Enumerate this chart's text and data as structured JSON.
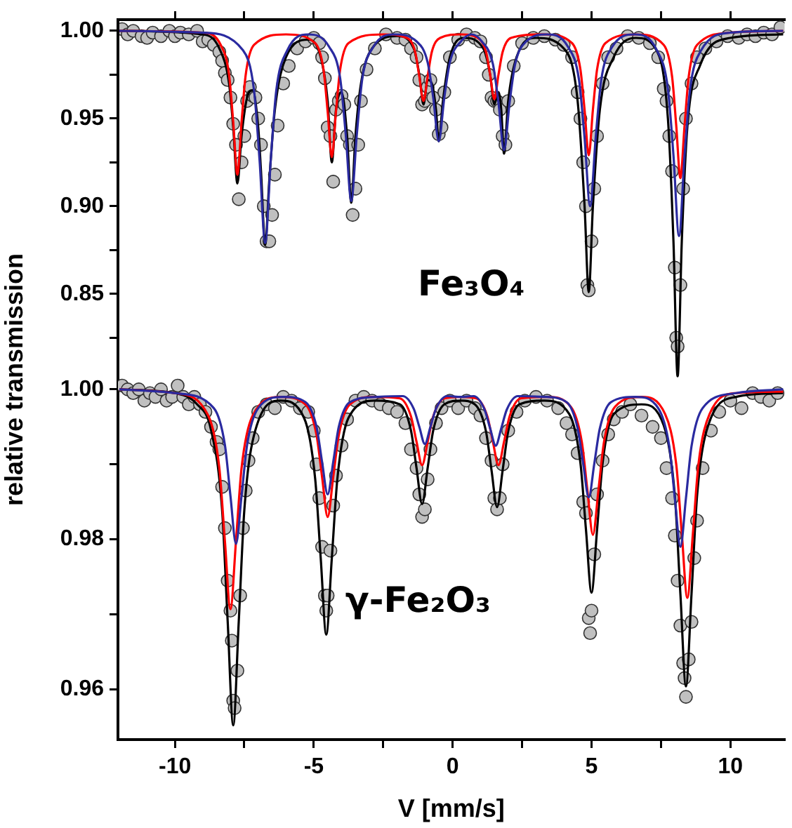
{
  "chart_data": [
    {
      "type": "line",
      "annotations": [
        "Fe₃O₄"
      ],
      "legend": false,
      "tick_labels": "y",
      "xlim": [
        -12.05,
        11.95
      ],
      "ylim": [
        0.5958,
        1.0064
      ],
      "xticks": [
        -10,
        {
          "value": -7.5,
          "label": null
        },
        -5,
        {
          "value": -2.5,
          "label": null
        },
        0,
        {
          "value": 2.5,
          "label": null
        },
        5,
        {
          "value": 7.5,
          "label": null
        },
        10
      ],
      "yticks": [
        {
          "value": 0.825,
          "label": null
        },
        0.85,
        {
          "value": 0.875,
          "label": null
        },
        {
          "value": 0.9,
          "label": "0.90"
        },
        {
          "value": 0.925,
          "label": null
        },
        0.95,
        {
          "value": 0.975,
          "label": null
        },
        {
          "value": 1,
          "label": "1.00"
        }
      ],
      "series": [
        {
          "type": "scatter",
          "marker": "circle",
          "color": "#c0c0c0",
          "x": [
            -11.9,
            -11.7,
            -11.5,
            -11.2,
            -11,
            -10.8,
            -10.5,
            -10.2,
            -10,
            -9.8,
            -9.5,
            -9.2,
            -9,
            -8.8,
            -8.6,
            -8.4,
            -8.3,
            -8.2,
            -8.1,
            -8.0,
            -7.9,
            -7.8,
            -7.7,
            -7.6,
            -7.5,
            -7.4,
            -7.3,
            -7.2,
            -7.1,
            -7.0,
            -6.9,
            -6.8,
            -6.7,
            -6.6,
            -6.5,
            -6.4,
            -6.3,
            -6.1,
            -5.9,
            -5.6,
            -5.3,
            -5.0,
            -4.8,
            -4.7,
            -4.6,
            -4.5,
            -4.4,
            -4.3,
            -4.2,
            -4.1,
            -4.0,
            -3.9,
            -3.8,
            -3.7,
            -3.6,
            -3.5,
            -3.4,
            -3.3,
            -3.1,
            -2.8,
            -2.4,
            -2.0,
            -1.7,
            -1.5,
            -1.3,
            -1.2,
            -1.1,
            -1.0,
            -0.9,
            -0.8,
            -0.7,
            -0.6,
            -0.5,
            -0.4,
            -0.3,
            -0.1,
            0.2,
            0.5,
            0.8,
            1.0,
            1.2,
            1.3,
            1.4,
            1.5,
            1.6,
            1.7,
            1.8,
            1.9,
            2.0,
            2.2,
            2.5,
            2.9,
            3.3,
            3.7,
            4.0,
            4.3,
            4.5,
            4.6,
            4.7,
            4.8,
            4.85,
            4.9,
            5.0,
            5.1,
            5.2,
            5.4,
            5.6,
            5.9,
            6.3,
            6.7,
            7.1,
            7.4,
            7.6,
            7.7,
            7.8,
            7.9,
            8.0,
            8.05,
            8.1,
            8.2,
            8.3,
            8.4,
            8.6,
            8.8,
            9.1,
            9.5,
            9.9,
            10.3,
            10.6,
            10.9,
            11.2,
            11.5,
            11.8
          ],
          "values": [
            1.001,
            0.998,
            1.0,
            0.997,
            0.996,
            0.999,
            0.997,
            1.0,
            0.997,
            0.999,
            0.998,
            1.0,
            0.994,
            0.995,
            0.992,
            0.988,
            0.983,
            0.976,
            0.972,
            0.962,
            0.947,
            0.935,
            0.904,
            0.925,
            0.94,
            0.96,
            0.968,
            0.963,
            0.962,
            0.95,
            0.935,
            0.9,
            0.88,
            0.88,
            0.895,
            0.918,
            0.946,
            0.97,
            0.98,
            0.99,
            0.994,
            0.996,
            0.993,
            0.985,
            0.973,
            0.945,
            0.94,
            0.914,
            0.955,
            0.96,
            0.963,
            0.958,
            0.94,
            0.935,
            0.895,
            0.91,
            0.935,
            0.96,
            0.978,
            0.99,
            0.998,
            0.996,
            0.995,
            0.99,
            0.985,
            0.972,
            0.958,
            0.96,
            0.968,
            0.972,
            0.962,
            0.955,
            0.941,
            0.945,
            0.965,
            0.985,
            0.995,
            0.998,
            0.996,
            0.994,
            0.985,
            0.975,
            0.962,
            0.96,
            0.96,
            0.955,
            0.94,
            0.935,
            0.96,
            0.98,
            0.993,
            0.996,
            0.997,
            0.995,
            0.992,
            0.985,
            0.965,
            0.95,
            0.925,
            0.9,
            0.855,
            0.852,
            0.88,
            0.91,
            0.94,
            0.97,
            0.985,
            0.99,
            0.997,
            0.996,
            0.993,
            0.985,
            0.967,
            0.96,
            0.94,
            0.92,
            0.865,
            0.825,
            0.82,
            0.855,
            0.91,
            0.95,
            0.97,
            0.985,
            0.99,
            0.994,
            0.997,
            0.996,
            0.998,
            0.997,
            0.999,
            0.998,
            1.002
          ]
        },
        {
          "type": "line",
          "marker": "none",
          "color": "#000000",
          "x": [
            -12,
            -9,
            -8.4,
            -8.05,
            -7.9,
            -7.75,
            -7.6,
            -7.4,
            -7.2,
            -7.0,
            -6.9,
            -6.75,
            -6.6,
            -6.4,
            -6.0,
            -5.2,
            -4.75,
            -4.5,
            -4.35,
            -4.2,
            -4.0,
            -3.8,
            -3.65,
            -3.5,
            -3.3,
            -2.9,
            -2.0,
            -1.4,
            -1.2,
            -1.05,
            -0.9,
            -0.75,
            -0.6,
            -0.5,
            -0.35,
            -0.1,
            0.4,
            1.1,
            1.35,
            1.5,
            1.65,
            1.75,
            1.85,
            2.0,
            2.3,
            3.0,
            4.0,
            4.5,
            4.75,
            4.9,
            5.05,
            5.3,
            5.8,
            6.6,
            7.3,
            7.75,
            7.95,
            8.1,
            8.25,
            8.45,
            8.9,
            10,
            11.9
          ],
          "values": [
            1.0,
            0.998,
            0.99,
            0.97,
            0.945,
            0.913,
            0.94,
            0.962,
            0.966,
            0.945,
            0.92,
            0.878,
            0.915,
            0.955,
            0.985,
            0.995,
            0.985,
            0.96,
            0.925,
            0.955,
            0.965,
            0.94,
            0.902,
            0.94,
            0.97,
            0.99,
            0.997,
            0.99,
            0.975,
            0.958,
            0.972,
            0.97,
            0.955,
            0.937,
            0.96,
            0.985,
            0.996,
            0.99,
            0.975,
            0.958,
            0.965,
            0.955,
            0.93,
            0.96,
            0.985,
            0.996,
            0.99,
            0.96,
            0.9,
            0.851,
            0.9,
            0.955,
            0.985,
            0.996,
            0.99,
            0.95,
            0.88,
            0.803,
            0.88,
            0.945,
            0.98,
            0.996,
            0.998
          ]
        },
        {
          "type": "line",
          "marker": "none",
          "color": "#ff0000",
          "x": [
            -12,
            -9,
            -8.35,
            -8.05,
            -7.9,
            -7.75,
            -7.6,
            -7.45,
            -7.15,
            -6,
            -4.95,
            -4.65,
            -4.5,
            -4.35,
            -4.2,
            -4.05,
            -3.75,
            -2.5,
            -1.65,
            -1.35,
            -1.2,
            -1.05,
            -0.9,
            -0.75,
            -0.45,
            0.3,
            0.9,
            1.2,
            1.35,
            1.5,
            1.65,
            1.8,
            2.1,
            3.3,
            4.3,
            4.6,
            4.75,
            4.9,
            5.05,
            5.2,
            5.5,
            6.6,
            7.6,
            7.9,
            8.05,
            8.2,
            8.35,
            8.5,
            8.8,
            10,
            11.9
          ],
          "values": [
            1.0,
            0.999,
            0.992,
            0.975,
            0.948,
            0.918,
            0.948,
            0.975,
            0.992,
            0.998,
            0.993,
            0.978,
            0.954,
            0.928,
            0.954,
            0.978,
            0.993,
            0.998,
            0.996,
            0.988,
            0.974,
            0.96,
            0.974,
            0.988,
            0.996,
            0.998,
            0.996,
            0.988,
            0.975,
            0.961,
            0.975,
            0.988,
            0.996,
            0.998,
            0.993,
            0.978,
            0.955,
            0.929,
            0.955,
            0.978,
            0.993,
            0.998,
            0.992,
            0.974,
            0.946,
            0.916,
            0.946,
            0.974,
            0.992,
            0.999,
            1.0
          ]
        },
        {
          "type": "line",
          "marker": "none",
          "color": "#2a2aa0",
          "x": [
            -12,
            -9,
            -7.55,
            -7.15,
            -6.95,
            -6.75,
            -6.55,
            -6.35,
            -5.95,
            -5.2,
            -4.45,
            -4.05,
            -3.85,
            -3.65,
            -3.45,
            -3.25,
            -2.85,
            -2.1,
            -1.3,
            -0.9,
            -0.7,
            -0.5,
            -0.3,
            -0.1,
            0.3,
            0.68,
            1.05,
            1.45,
            1.65,
            1.85,
            2.05,
            2.25,
            2.65,
            3.4,
            4.15,
            4.55,
            4.75,
            4.95,
            5.15,
            5.35,
            5.75,
            6.55,
            7.35,
            7.75,
            7.95,
            8.15,
            8.35,
            8.55,
            8.95,
            10,
            11.9
          ],
          "values": [
            1.0,
            0.999,
            0.989,
            0.966,
            0.926,
            0.879,
            0.926,
            0.966,
            0.989,
            0.998,
            0.991,
            0.973,
            0.941,
            0.903,
            0.941,
            0.973,
            0.991,
            0.998,
            0.994,
            0.982,
            0.962,
            0.937,
            0.962,
            0.982,
            0.994,
            0.998,
            0.994,
            0.981,
            0.959,
            0.932,
            0.959,
            0.981,
            0.994,
            0.998,
            0.991,
            0.972,
            0.939,
            0.9,
            0.939,
            0.972,
            0.991,
            0.998,
            0.989,
            0.967,
            0.929,
            0.883,
            0.929,
            0.967,
            0.989,
            0.999,
            1.0
          ]
        }
      ]
    },
    {
      "type": "line",
      "xlabel": "V [mm/s]",
      "ylabel": "relative transmission",
      "annotations": [
        "γ-Fe₂O₃"
      ],
      "legend": false,
      "xlim": [
        -12.05,
        11.95
      ],
      "ylim": [
        0.9533,
        1.0493
      ],
      "xticks": [
        -10,
        {
          "value": -7.5,
          "label": null
        },
        -5,
        {
          "value": -2.5,
          "label": null
        },
        0,
        {
          "value": 2.5,
          "label": null
        },
        5,
        {
          "value": 7.5,
          "label": null
        },
        10
      ],
      "yticks": [
        0.96,
        {
          "value": 0.97,
          "label": null
        },
        0.98,
        {
          "value": 0.99,
          "label": null
        },
        {
          "value": 1,
          "label": "1.00"
        }
      ],
      "series": [
        {
          "type": "scatter",
          "marker": "circle",
          "color": "#c0c0c0",
          "x": [
            -11.9,
            -11.7,
            -11.5,
            -11.3,
            -11.1,
            -10.9,
            -10.7,
            -10.5,
            -10.3,
            -10.1,
            -9.9,
            -9.7,
            -9.5,
            -9.3,
            -9.1,
            -8.9,
            -8.7,
            -8.5,
            -8.4,
            -8.3,
            -8.2,
            -8.1,
            -8.0,
            -7.95,
            -7.9,
            -7.85,
            -7.75,
            -7.65,
            -7.55,
            -7.45,
            -7.35,
            -7.2,
            -7.0,
            -6.7,
            -6.4,
            -6.1,
            -5.8,
            -5.5,
            -5.2,
            -5.0,
            -4.9,
            -4.8,
            -4.7,
            -4.6,
            -4.55,
            -4.5,
            -4.4,
            -4.3,
            -4.2,
            -4.0,
            -3.8,
            -3.5,
            -3.2,
            -2.9,
            -2.6,
            -2.3,
            -2.0,
            -1.7,
            -1.5,
            -1.3,
            -1.2,
            -1.1,
            -1.0,
            -0.9,
            -0.8,
            -0.6,
            -0.4,
            -0.1,
            0.2,
            0.5,
            0.8,
            1.0,
            1.2,
            1.4,
            1.5,
            1.6,
            1.7,
            1.8,
            2.0,
            2.3,
            2.6,
            3.0,
            3.4,
            3.8,
            4.1,
            4.3,
            4.5,
            4.7,
            4.8,
            4.9,
            4.95,
            5.0,
            5.1,
            5.2,
            5.4,
            5.6,
            5.8,
            6.1,
            6.4,
            6.8,
            7.2,
            7.5,
            7.7,
            7.9,
            8.0,
            8.1,
            8.2,
            8.3,
            8.35,
            8.4,
            8.5,
            8.6,
            8.7,
            8.8,
            9.0,
            9.3,
            9.6,
            10.0,
            10.4,
            10.8,
            11.1,
            11.4,
            11.7
          ],
          "values": [
            1.0005,
            1.0,
            0.9995,
            1.0,
            0.9985,
            0.9995,
            0.999,
            1.0,
            0.9985,
            0.999,
            1.0005,
            0.999,
            0.998,
            0.999,
            0.998,
            0.997,
            0.995,
            0.993,
            0.992,
            0.987,
            0.9815,
            0.9745,
            0.9705,
            0.9665,
            0.9585,
            0.9575,
            0.9625,
            0.9725,
            0.9815,
            0.9865,
            0.9905,
            0.9935,
            0.997,
            0.998,
            0.9975,
            0.999,
            0.9985,
            0.9975,
            0.997,
            0.9945,
            0.99,
            0.9855,
            0.979,
            0.9725,
            0.9705,
            0.9725,
            0.9785,
            0.9845,
            0.9885,
            0.9925,
            0.996,
            0.9985,
            0.999,
            0.9985,
            0.998,
            0.9975,
            0.997,
            0.9955,
            0.992,
            0.9895,
            0.986,
            0.983,
            0.984,
            0.988,
            0.992,
            0.9955,
            0.9975,
            0.9985,
            0.9975,
            0.9985,
            0.9975,
            0.9965,
            0.9935,
            0.9905,
            0.9855,
            0.984,
            0.9855,
            0.99,
            0.9945,
            0.997,
            0.9985,
            0.999,
            0.9985,
            0.9975,
            0.9955,
            0.994,
            0.9915,
            0.985,
            0.9835,
            0.9695,
            0.9675,
            0.9705,
            0.978,
            0.986,
            0.9905,
            0.994,
            0.996,
            0.997,
            0.998,
            0.9965,
            0.995,
            0.9935,
            0.9895,
            0.9855,
            0.9805,
            0.9745,
            0.9685,
            0.9635,
            0.9615,
            0.959,
            0.964,
            0.969,
            0.9775,
            0.9825,
            0.9895,
            0.9945,
            0.997,
            0.9985,
            0.9975,
            0.9995,
            0.999,
            0.9985,
            0.9995
          ]
        },
        {
          "type": "line",
          "marker": "none",
          "color": "#000000",
          "x": [
            -12,
            -10,
            -9.2,
            -8.7,
            -8.3,
            -8.1,
            -7.9,
            -7.7,
            -7.5,
            -7.1,
            -6.2,
            -5.35,
            -4.95,
            -4.75,
            -4.55,
            -4.35,
            -4.15,
            -3.75,
            -2.8,
            -1.9,
            -1.5,
            -1.3,
            -1.1,
            -0.9,
            -0.7,
            -0.3,
            0.3,
            0.8,
            1.2,
            1.4,
            1.6,
            1.8,
            2.0,
            2.4,
            3.3,
            4.2,
            4.6,
            4.8,
            5.0,
            5.2,
            5.4,
            5.8,
            6.8,
            7.6,
            8.0,
            8.2,
            8.4,
            8.6,
            8.8,
            9.2,
            10.2,
            11.9
          ],
          "values": [
            1.0,
            0.9995,
            0.998,
            0.9946,
            0.9839,
            0.9691,
            0.9552,
            0.9691,
            0.9839,
            0.9946,
            0.9985,
            0.9962,
            0.9881,
            0.9775,
            0.9673,
            0.9775,
            0.9881,
            0.9962,
            0.9985,
            0.998,
            0.9945,
            0.9895,
            0.9847,
            0.9895,
            0.9945,
            0.998,
            0.9985,
            0.998,
            0.9944,
            0.9892,
            0.9843,
            0.9892,
            0.9944,
            0.998,
            0.9985,
            0.9967,
            0.9902,
            0.9813,
            0.9729,
            0.9813,
            0.9902,
            0.9967,
            0.998,
            0.9952,
            0.9858,
            0.9727,
            0.9604,
            0.9727,
            0.9858,
            0.9952,
            0.999,
            0.9995
          ]
        },
        {
          "type": "line",
          "marker": "none",
          "color": "#ff0000",
          "x": [
            -12,
            -10,
            -8.8,
            -8.4,
            -8.2,
            -8.0,
            -7.8,
            -7.6,
            -7.2,
            -6.2,
            -5.3,
            -4.9,
            -4.7,
            -4.5,
            -4.3,
            -4.1,
            -3.7,
            -2.8,
            -1.9,
            -1.5,
            -1.3,
            -1.1,
            -0.9,
            -0.7,
            -0.3,
            0.3,
            0.85,
            1.25,
            1.45,
            1.65,
            1.85,
            2.05,
            2.45,
            3.4,
            4.25,
            4.65,
            4.85,
            5.05,
            5.25,
            5.45,
            5.85,
            6.8,
            7.65,
            8.05,
            8.25,
            8.45,
            8.65,
            8.85,
            9.25,
            10.2,
            11.9
          ],
          "values": [
            1.0,
            0.9995,
            0.9965,
            0.9895,
            0.9798,
            0.9707,
            0.9798,
            0.9895,
            0.9965,
            0.999,
            0.998,
            0.9939,
            0.9883,
            0.983,
            0.9883,
            0.9939,
            0.998,
            0.999,
            0.9988,
            0.9964,
            0.993,
            0.9899,
            0.993,
            0.9964,
            0.9988,
            0.999,
            0.9988,
            0.9964,
            0.993,
            0.9899,
            0.993,
            0.9964,
            0.9988,
            0.999,
            0.9977,
            0.993,
            0.9866,
            0.9806,
            0.9866,
            0.993,
            0.9977,
            0.999,
            0.9967,
            0.99,
            0.9808,
            0.9722,
            0.9808,
            0.99,
            0.9967,
            0.9995,
            0.9997
          ]
        },
        {
          "type": "line",
          "marker": "none",
          "color": "#2a2aa0",
          "x": [
            -12,
            -10,
            -8.6,
            -8.2,
            -8.0,
            -7.8,
            -7.6,
            -7.4,
            -7.0,
            -6.1,
            -5.3,
            -4.9,
            -4.7,
            -4.5,
            -4.3,
            -4.1,
            -3.7,
            -2.7,
            -1.8,
            -1.4,
            -1.2,
            -1.0,
            -0.8,
            -0.6,
            -0.2,
            0.3,
            0.75,
            1.15,
            1.35,
            1.55,
            1.75,
            1.95,
            2.35,
            3.3,
            4.1,
            4.5,
            4.7,
            4.9,
            5.1,
            5.3,
            5.7,
            6.6,
            7.4,
            7.8,
            8.0,
            8.2,
            8.4,
            8.6,
            9.0,
            10.2,
            11.9
          ],
          "values": [
            1.0,
            0.9995,
            0.9975,
            0.9926,
            0.9858,
            0.9794,
            0.9858,
            0.9926,
            0.9975,
            0.999,
            0.9983,
            0.995,
            0.9903,
            0.986,
            0.9903,
            0.995,
            0.9983,
            0.999,
            0.9991,
            0.9974,
            0.995,
            0.9927,
            0.995,
            0.9974,
            0.9991,
            0.999,
            0.9991,
            0.9973,
            0.9948,
            0.9925,
            0.9948,
            0.9973,
            0.9991,
            0.999,
            0.9983,
            0.9948,
            0.9901,
            0.9856,
            0.9901,
            0.9948,
            0.9983,
            0.999,
            0.9975,
            0.9924,
            0.9855,
            0.979,
            0.9855,
            0.9924,
            0.9975,
            0.9995,
            1.0
          ]
        }
      ]
    }
  ]
}
